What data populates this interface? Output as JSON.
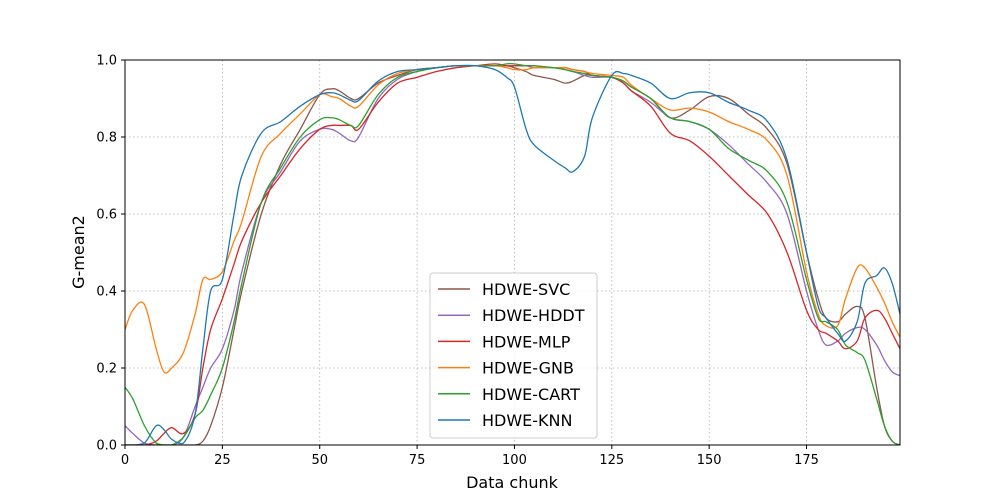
{
  "chart_data": {
    "type": "line",
    "title": "",
    "xlabel": "Data chunk",
    "ylabel": "G-mean2",
    "xlim": [
      0,
      199
    ],
    "ylim": [
      0,
      1
    ],
    "xticks": [
      0,
      25,
      50,
      75,
      100,
      125,
      150,
      175
    ],
    "xtick_labels": [
      "0",
      "25",
      "50",
      "75",
      "100",
      "125",
      "150",
      "175"
    ],
    "yticks": [
      0,
      0.2,
      0.4,
      0.6,
      0.8,
      1.0
    ],
    "ytick_labels": [
      "0.0",
      "0.2",
      "0.4",
      "0.6",
      "0.8",
      "1.0"
    ],
    "grid": true,
    "legend_position": "lower-center",
    "x": [
      0,
      2,
      5,
      8,
      10,
      12,
      15,
      18,
      20,
      22,
      25,
      28,
      30,
      35,
      40,
      45,
      50,
      53,
      55,
      58,
      60,
      65,
      70,
      75,
      80,
      85,
      90,
      95,
      98,
      100,
      103,
      105,
      110,
      113,
      115,
      118,
      120,
      125,
      128,
      130,
      135,
      140,
      145,
      150,
      155,
      160,
      165,
      170,
      175,
      178,
      180,
      183,
      185,
      188,
      190,
      193,
      195,
      197,
      199
    ],
    "series": [
      {
        "name": "HDWE-SVC",
        "color": "#8c564b",
        "values": [
          0,
          0,
          0,
          0,
          0,
          0,
          0,
          0,
          0.01,
          0.05,
          0.15,
          0.3,
          0.4,
          0.6,
          0.73,
          0.82,
          0.91,
          0.925,
          0.92,
          0.9,
          0.9,
          0.94,
          0.96,
          0.975,
          0.98,
          0.985,
          0.985,
          0.985,
          0.985,
          0.98,
          0.97,
          0.96,
          0.95,
          0.94,
          0.945,
          0.96,
          0.96,
          0.955,
          0.945,
          0.93,
          0.9,
          0.85,
          0.87,
          0.905,
          0.9,
          0.86,
          0.82,
          0.73,
          0.5,
          0.38,
          0.33,
          0.32,
          0.34,
          0.36,
          0.33,
          0.15,
          0.05,
          0.01,
          0
        ]
      },
      {
        "name": "HDWE-HDDT",
        "color": "#9467bd",
        "values": [
          0.05,
          0.03,
          0.005,
          0,
          0,
          0,
          0.02,
          0.1,
          0.15,
          0.2,
          0.25,
          0.35,
          0.45,
          0.63,
          0.71,
          0.79,
          0.82,
          0.82,
          0.81,
          0.79,
          0.8,
          0.9,
          0.95,
          0.97,
          0.98,
          0.985,
          0.985,
          0.985,
          0.985,
          0.985,
          0.985,
          0.98,
          0.98,
          0.975,
          0.97,
          0.96,
          0.955,
          0.955,
          0.94,
          0.92,
          0.89,
          0.85,
          0.84,
          0.82,
          0.78,
          0.73,
          0.68,
          0.6,
          0.4,
          0.3,
          0.26,
          0.27,
          0.29,
          0.305,
          0.3,
          0.26,
          0.22,
          0.19,
          0.18
        ]
      },
      {
        "name": "HDWE-MLP",
        "color": "#d62728",
        "values": [
          0,
          0,
          0,
          0.01,
          0.03,
          0.045,
          0.03,
          0.08,
          0.2,
          0.3,
          0.38,
          0.47,
          0.53,
          0.63,
          0.7,
          0.77,
          0.82,
          0.83,
          0.83,
          0.83,
          0.82,
          0.89,
          0.94,
          0.955,
          0.97,
          0.98,
          0.985,
          0.99,
          0.985,
          0.985,
          0.985,
          0.985,
          0.98,
          0.98,
          0.975,
          0.97,
          0.96,
          0.955,
          0.94,
          0.92,
          0.88,
          0.81,
          0.79,
          0.75,
          0.7,
          0.65,
          0.6,
          0.5,
          0.35,
          0.3,
          0.29,
          0.27,
          0.25,
          0.27,
          0.33,
          0.35,
          0.33,
          0.29,
          0.25
        ]
      },
      {
        "name": "HDWE-GNB",
        "color": "#ff7f0e",
        "values": [
          0.3,
          0.35,
          0.365,
          0.25,
          0.19,
          0.2,
          0.24,
          0.34,
          0.43,
          0.43,
          0.45,
          0.53,
          0.58,
          0.75,
          0.81,
          0.86,
          0.91,
          0.905,
          0.9,
          0.88,
          0.88,
          0.935,
          0.965,
          0.975,
          0.98,
          0.985,
          0.985,
          0.985,
          0.98,
          0.975,
          0.975,
          0.98,
          0.98,
          0.98,
          0.975,
          0.97,
          0.965,
          0.96,
          0.955,
          0.935,
          0.9,
          0.87,
          0.875,
          0.865,
          0.84,
          0.82,
          0.79,
          0.7,
          0.45,
          0.34,
          0.31,
          0.31,
          0.38,
          0.46,
          0.46,
          0.41,
          0.37,
          0.32,
          0.28
        ]
      },
      {
        "name": "HDWE-CART",
        "color": "#2ca02c",
        "values": [
          0.15,
          0.12,
          0.05,
          0.005,
          0,
          0,
          0.02,
          0.07,
          0.09,
          0.13,
          0.2,
          0.32,
          0.42,
          0.63,
          0.72,
          0.8,
          0.845,
          0.85,
          0.845,
          0.83,
          0.83,
          0.91,
          0.955,
          0.97,
          0.98,
          0.985,
          0.985,
          0.985,
          0.99,
          0.99,
          0.985,
          0.985,
          0.98,
          0.975,
          0.97,
          0.965,
          0.96,
          0.955,
          0.945,
          0.93,
          0.9,
          0.85,
          0.84,
          0.82,
          0.77,
          0.74,
          0.71,
          0.63,
          0.43,
          0.33,
          0.32,
          0.3,
          0.26,
          0.24,
          0.22,
          0.12,
          0.05,
          0.01,
          0
        ]
      },
      {
        "name": "HDWE-KNN",
        "color": "#1f77b4",
        "values": [
          0,
          0,
          0.005,
          0.05,
          0.04,
          0.015,
          0.005,
          0.08,
          0.25,
          0.4,
          0.43,
          0.6,
          0.7,
          0.81,
          0.84,
          0.88,
          0.91,
          0.915,
          0.91,
          0.895,
          0.895,
          0.945,
          0.97,
          0.975,
          0.98,
          0.985,
          0.985,
          0.975,
          0.955,
          0.93,
          0.82,
          0.78,
          0.74,
          0.72,
          0.71,
          0.75,
          0.85,
          0.96,
          0.965,
          0.96,
          0.94,
          0.9,
          0.915,
          0.915,
          0.89,
          0.87,
          0.84,
          0.74,
          0.5,
          0.36,
          0.33,
          0.29,
          0.27,
          0.32,
          0.42,
          0.44,
          0.46,
          0.42,
          0.34
        ]
      }
    ]
  }
}
